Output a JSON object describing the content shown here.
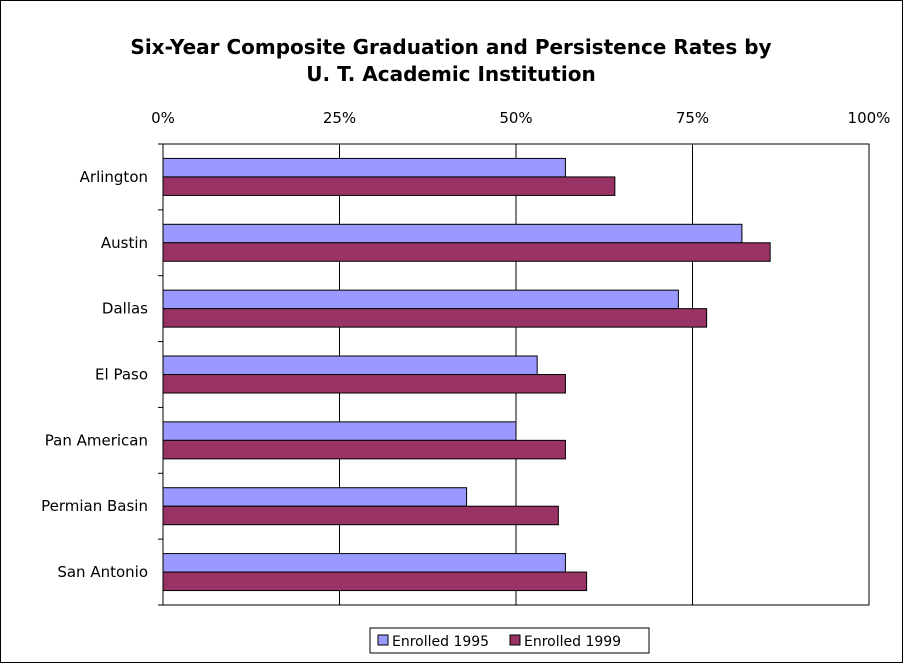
{
  "chart_data": {
    "type": "bar",
    "orientation": "horizontal",
    "title_lines": [
      "Six-Year Composite Graduation and Persistence Rates by",
      "U. T. Academic Institution"
    ],
    "categories": [
      "Arlington",
      "Austin",
      "Dallas",
      "El Paso",
      "Pan American",
      "Permian Basin",
      "San Antonio"
    ],
    "series": [
      {
        "name": "Enrolled 1995",
        "color": "#9999ff",
        "values": [
          57,
          82,
          73,
          53,
          50,
          43,
          57
        ]
      },
      {
        "name": "Enrolled 1999",
        "color": "#993366",
        "values": [
          64,
          86,
          77,
          57,
          57,
          56,
          60
        ]
      }
    ],
    "xlim": [
      0,
      100
    ],
    "xticks": [
      0,
      25,
      50,
      75,
      100
    ],
    "xtick_labels": [
      "0%",
      "25%",
      "50%",
      "75%",
      "100%"
    ],
    "x_axis_position": "top",
    "grid": "vertical",
    "legend_position": "bottom"
  }
}
